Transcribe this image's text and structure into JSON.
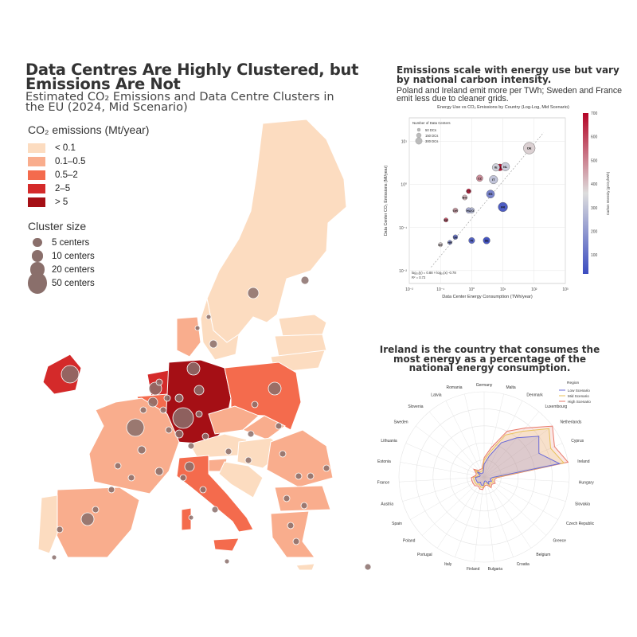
{
  "map_panel": {
    "title": "Data Centres Are Highly Clustered, but Emissions Are Not",
    "subtitle": "Estimated CO₂ Emissions and Data Centre Clusters in the EU (2024, Mid Scenario)",
    "legend_title": "CO₂ emissions (Mt/year)",
    "emission_classes": [
      {
        "label": "< 0.1",
        "color": "#fcdcc0"
      },
      {
        "label": "0.1–0.5",
        "color": "#f9ad8d"
      },
      {
        "label": "0.5–2",
        "color": "#f46b4d"
      },
      {
        "label": "2–5",
        "color": "#d42a2a"
      },
      {
        "label": "> 5",
        "color": "#a50f15"
      }
    ],
    "size_legend_title": "Cluster size",
    "size_classes": [
      {
        "label": "5 centers",
        "count": 5
      },
      {
        "label": "10 centers",
        "count": 10
      },
      {
        "label": "20 centers",
        "count": 20
      },
      {
        "label": "50 centers",
        "count": 50
      }
    ],
    "cluster_color": "#8a6f6b"
  },
  "scatter_panel": {
    "heading": "Emissions scale with energy use but vary by national carbon intensity.",
    "note": "Poland and Ireland emit more per TWh; Sweden and France emit less due to cleaner grids."
  },
  "radar_panel": {
    "heading": "Ireland is the country  that consumes the most energy as a percentage of the national energy consumption."
  },
  "chart_data": [
    {
      "type": "scatter",
      "title": "Energy Use vs CO₂ Emissions by Country (Log-Log, Mid Scenario)",
      "xlabel": "Data Center Energy Consumption (TWh/year)",
      "ylabel": "Data Center CO₂ Emissions (Mt/year)",
      "xscale": "log",
      "yscale": "log",
      "xlim": [
        0.01,
        1000
      ],
      "ylim": [
        0.01,
        20
      ],
      "x_ticks": [
        "10⁻²",
        "10⁻¹",
        "10⁰",
        "10¹",
        "10²",
        "10³"
      ],
      "y_ticks": [
        "10¹",
        "10⁰",
        "10⁻¹",
        "10⁻²"
      ],
      "size_legend": {
        "title": "Number of Data Centers",
        "labels": [
          "50 DCs",
          "150 DCs",
          "300 DCs"
        ]
      },
      "colorbar": {
        "label": "Carbon Intensity (gCO₂/kWh)",
        "min": 20,
        "max": 700,
        "ticks": [
          "700",
          "600",
          "500",
          "400",
          "300",
          "200",
          "100"
        ]
      },
      "fit_annotation": [
        "log₁₀(y) = 0.88 × log₁₀(x) -0.78",
        "R² = 0.72"
      ],
      "grid": true,
      "points": [
        {
          "code": "DE",
          "x": 70,
          "y": 7,
          "ci": 380,
          "size": 270
        },
        {
          "code": "PL",
          "x": 8,
          "y": 2.5,
          "ci": 690,
          "size": 60
        },
        {
          "code": "IE",
          "x": 6,
          "y": 2.5,
          "ci": 330,
          "size": 80
        },
        {
          "code": "NL",
          "x": 12,
          "y": 2.6,
          "ci": 320,
          "size": 110
        },
        {
          "code": "IT",
          "x": 5,
          "y": 1.3,
          "ci": 300,
          "size": 110
        },
        {
          "code": "CZ",
          "x": 1.8,
          "y": 1.4,
          "ci": 480,
          "size": 50
        },
        {
          "code": "BE",
          "x": 4,
          "y": 0.6,
          "ci": 180,
          "size": 70
        },
        {
          "code": "ES",
          "x": 4,
          "y": 0.6,
          "ci": 150,
          "size": 100
        },
        {
          "code": "FR",
          "x": 10,
          "y": 0.3,
          "ci": 60,
          "size": 150
        },
        {
          "code": "CY",
          "x": 0.8,
          "y": 0.7,
          "ci": 650,
          "size": 15
        },
        {
          "code": "BG",
          "x": 0.6,
          "y": 0.5,
          "ci": 420,
          "size": 20
        },
        {
          "code": "GR",
          "x": 0.3,
          "y": 0.25,
          "ci": 450,
          "size": 20
        },
        {
          "code": "RO",
          "x": 1.0,
          "y": 0.25,
          "ci": 280,
          "size": 30
        },
        {
          "code": "HU",
          "x": 0.8,
          "y": 0.25,
          "ci": 250,
          "size": 30
        },
        {
          "code": "EE",
          "x": 0.15,
          "y": 0.15,
          "ci": 560,
          "size": 10
        },
        {
          "code": "MT",
          "x": 0.1,
          "y": 0.04,
          "ci": 380,
          "size": 10
        },
        {
          "code": "FI",
          "x": 1.0,
          "y": 0.05,
          "ci": 80,
          "size": 40
        },
        {
          "code": "SE",
          "x": 3.0,
          "y": 0.05,
          "ci": 40,
          "size": 60
        },
        {
          "code": "SK",
          "x": 0.3,
          "y": 0.06,
          "ci": 120,
          "size": 15
        },
        {
          "code": "HR",
          "x": 0.2,
          "y": 0.045,
          "ci": 180,
          "size": 10
        }
      ]
    },
    {
      "type": "radar",
      "legend_title": "Region",
      "axes": [
        "Germany",
        "Malta",
        "Denmark",
        "Luxembourg",
        "Netherlands",
        "Cyprus",
        "Ireland",
        "Hungary",
        "Slovakia",
        "Czech Republic",
        "Greece",
        "Belgium",
        "Croatia",
        "Bulgaria",
        "Finland",
        "Italy",
        "Portugal",
        "Poland",
        "Spain",
        "Austria",
        "France",
        "Estonia",
        "Lithuania",
        "Sweden",
        "Slovenia",
        "Latvia",
        "Romania"
      ],
      "series": [
        {
          "name": "Low Scenario",
          "color": "#6a6ad8",
          "values": [
            3,
            5,
            9,
            12,
            16,
            14,
            18,
            2,
            1.5,
            2,
            1.5,
            2,
            1,
            1,
            2,
            2,
            1.5,
            2,
            2,
            2,
            2,
            1,
            1,
            2,
            1,
            1,
            1
          ]
        },
        {
          "name": "Mid Scenario",
          "color": "#e8c25a",
          "values": [
            4,
            6,
            11,
            14,
            19,
            17,
            19,
            2.5,
            2,
            2.5,
            2,
            2.5,
            1.5,
            1.5,
            2.5,
            2.5,
            2,
            2.5,
            2.5,
            2.5,
            2.5,
            1.5,
            1.5,
            2.5,
            1.5,
            1.5,
            1.5
          ]
        },
        {
          "name": "High Scenario",
          "color": "#e8786a",
          "values": [
            4.5,
            7,
            12,
            15,
            20,
            18,
            20,
            3,
            2.5,
            3,
            2.5,
            3,
            2,
            2,
            3,
            3,
            2.5,
            3,
            3,
            3,
            3,
            2,
            2,
            3,
            2,
            2,
            2
          ]
        }
      ],
      "rmax": 20
    }
  ]
}
